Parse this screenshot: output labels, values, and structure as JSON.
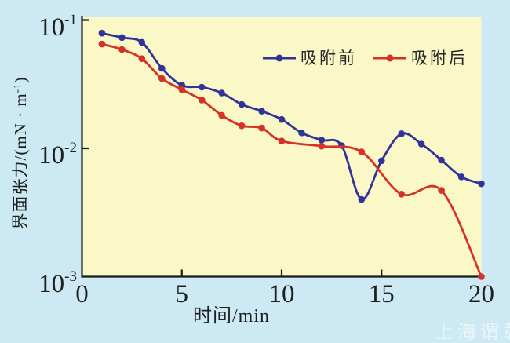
{
  "colors": {
    "outer_bg": "#cde9f4",
    "plot_bg": "#faf8c6",
    "axis": "#1a1a1a",
    "text": "#1f1f1f",
    "series_before": "#32329b",
    "series_after": "#d63226",
    "watermark": "rgba(255,255,255,0.6)"
  },
  "labels": {
    "xlabel": "时间/min",
    "ylabel_pre": "界面张力/(mN · m",
    "ylabel_sup": "-1",
    "ylabel_post": ")",
    "x_ticks": [
      "0",
      "5",
      "10",
      "15",
      "20"
    ],
    "y_ticks": [
      {
        "base": "10",
        "exp": "-1"
      },
      {
        "base": "10",
        "exp": "-2"
      },
      {
        "base": "10",
        "exp": "-3"
      }
    ],
    "watermark": "上海谓载"
  },
  "chart_data": {
    "type": "line",
    "title": "",
    "xlabel": "时间/min",
    "ylabel": "界面张力/(mN·m⁻¹)",
    "x_axis": {
      "min": 0,
      "max": 20,
      "ticks": [
        0,
        5,
        10,
        15,
        20
      ],
      "tick_marks_inside": [
        5,
        10,
        15
      ]
    },
    "y_axis": {
      "scale": "log",
      "min": 0.001,
      "max": 0.1,
      "ticks": [
        0.1,
        0.01,
        0.001
      ],
      "tick_labels": [
        "10^-1",
        "10^-2",
        "10^-3"
      ]
    },
    "grid": false,
    "legend_position": "inside-top-right",
    "series": [
      {
        "name": "吸附前",
        "color": "#32329b",
        "marker": "circle",
        "x": [
          1,
          2,
          3,
          4,
          5,
          6,
          7,
          8,
          9,
          10,
          11,
          12,
          13,
          14,
          15,
          16,
          17,
          18,
          19,
          20
        ],
        "y": [
          0.079,
          0.073,
          0.067,
          0.042,
          0.031,
          0.03,
          0.027,
          0.022,
          0.0195,
          0.0168,
          0.0132,
          0.0116,
          0.0105,
          0.004,
          0.008,
          0.013,
          0.0108,
          0.0081,
          0.006,
          0.0053
        ]
      },
      {
        "name": "吸附后",
        "color": "#d63226",
        "marker": "circle",
        "x": [
          1,
          2,
          3,
          4,
          5,
          6,
          7,
          8,
          9,
          10,
          12,
          14,
          16,
          18,
          20
        ],
        "y": [
          0.065,
          0.059,
          0.05,
          0.035,
          0.0287,
          0.0238,
          0.0181,
          0.015,
          0.0144,
          0.0114,
          0.0104,
          0.0094,
          0.0044,
          0.0047,
          0.001
        ]
      }
    ]
  }
}
